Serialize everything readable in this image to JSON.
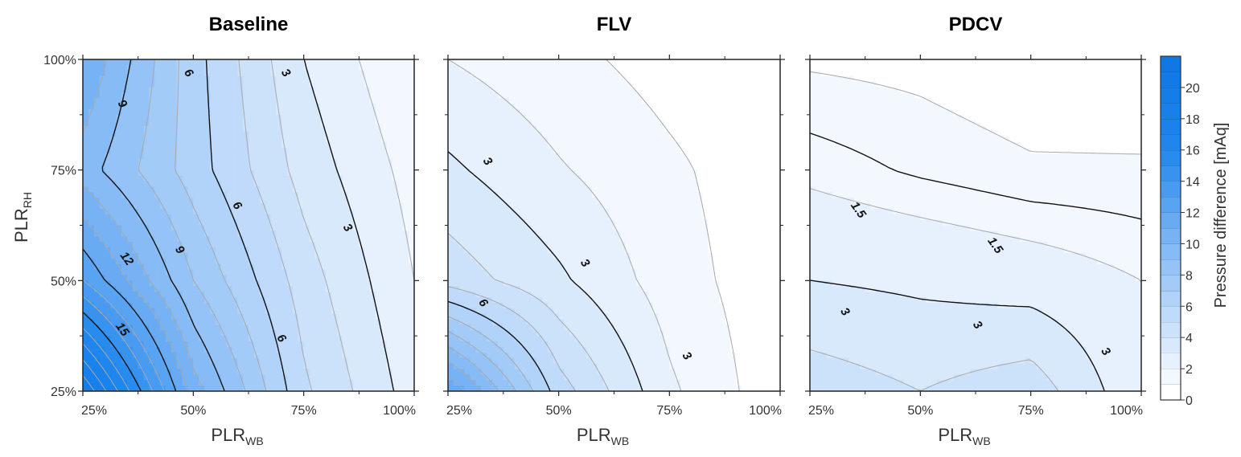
{
  "colors": {
    "levels": [
      "#ffffff",
      "#f3f8fe",
      "#e6f1fd",
      "#d9e9fc",
      "#cce2fb",
      "#bfdafa",
      "#b1d2f9",
      "#a3cbf8",
      "#95c3f7",
      "#86bbf5",
      "#77b3f4",
      "#68abf3",
      "#58a3f2",
      "#489bf1",
      "#3893ef",
      "#288bee",
      "#1e86ed",
      "#1a82ec",
      "#1780ea",
      "#147de8",
      "#127ae6",
      "#1078e4"
    ],
    "major_line": "#111111",
    "minor_line": "#a8a8a8"
  },
  "chart_data": [
    {
      "type": "heatmap",
      "title": "Baseline",
      "x": [
        25,
        50,
        75,
        100
      ],
      "y": [
        25,
        50,
        75,
        100
      ],
      "xlim": [
        25,
        100
      ],
      "ylim": [
        25,
        100
      ],
      "xticks": [
        "25%",
        "50%",
        "75%",
        "100%"
      ],
      "yticks": [
        "25%",
        "50%",
        "75%",
        "100%"
      ],
      "xlabel": "PLR",
      "xlabel_sub": "WB",
      "ylabel": "PLR",
      "ylabel_sub": "RH",
      "z": [
        [
          20,
          10.5,
          5.2,
          2.5
        ],
        [
          13,
          8,
          4.5,
          2
        ],
        [
          9.5,
          6.5,
          3.6,
          1.6
        ],
        [
          11,
          6.4,
          3,
          1
        ]
      ],
      "major_levels": [
        3,
        6,
        9,
        12,
        15
      ],
      "contour_labels": [
        {
          "text": "9",
          "x": 34,
          "y": 90
        },
        {
          "text": "6",
          "x": 49,
          "y": 97
        },
        {
          "text": "3",
          "x": 71,
          "y": 97
        },
        {
          "text": "6",
          "x": 60,
          "y": 67
        },
        {
          "text": "3",
          "x": 85,
          "y": 62
        },
        {
          "text": "12",
          "x": 35,
          "y": 55
        },
        {
          "text": "9",
          "x": 47,
          "y": 57
        },
        {
          "text": "15",
          "x": 34,
          "y": 39
        },
        {
          "text": "6",
          "x": 70,
          "y": 37
        }
      ]
    },
    {
      "type": "heatmap",
      "title": "FLV",
      "x": [
        25,
        50,
        75,
        100
      ],
      "y": [
        25,
        50,
        75,
        100
      ],
      "xlim": [
        25,
        100
      ],
      "ylim": [
        25,
        100
      ],
      "xticks": [
        "25%",
        "50%",
        "75%",
        "100%"
      ],
      "yticks": [],
      "xlabel": "PLR",
      "xlabel_sub": "WB",
      "ylabel": "",
      "ylabel_sub": "",
      "z": [
        [
          12,
          5.5,
          2.2,
          0.3
        ],
        [
          4.6,
          3.2,
          1.5,
          0.3
        ],
        [
          3.2,
          2.1,
          1.2,
          0.3
        ],
        [
          2,
          1.3,
          0.6,
          0.2
        ]
      ],
      "major_levels": [
        3,
        6
      ],
      "contour_labels": [
        {
          "text": "3",
          "x": 34,
          "y": 77
        },
        {
          "text": "3",
          "x": 56,
          "y": 54
        },
        {
          "text": "6",
          "x": 33,
          "y": 45
        },
        {
          "text": "3",
          "x": 79,
          "y": 33
        }
      ]
    },
    {
      "type": "heatmap",
      "title": "PDCV",
      "x": [
        25,
        50,
        75,
        100
      ],
      "y": [
        25,
        50,
        75,
        100
      ],
      "xlim": [
        25,
        100
      ],
      "ylim": [
        25,
        100
      ],
      "xticks": [
        "25%",
        "50%",
        "75%",
        "100%"
      ],
      "yticks": [],
      "xlabel": "PLR",
      "xlabel_sub": "WB",
      "ylabel": "",
      "ylabel_sub": "",
      "z": [
        [
          4.6,
          4,
          4.6,
          2.2
        ],
        [
          3,
          2.8,
          2.5,
          2
        ],
        [
          1.8,
          1.4,
          1.1,
          1.1
        ],
        [
          0.9,
          0.8,
          0.5,
          0.4
        ]
      ],
      "major_levels": [
        1.5,
        3
      ],
      "contour_labels": [
        {
          "text": "1.5",
          "x": 36,
          "y": 66
        },
        {
          "text": "1.5",
          "x": 67,
          "y": 58
        },
        {
          "text": "3",
          "x": 33,
          "y": 43
        },
        {
          "text": "3",
          "x": 63,
          "y": 40
        },
        {
          "text": "3",
          "x": 92,
          "y": 34
        }
      ]
    }
  ],
  "colorbar": {
    "title": "Pressure difference [mAq]",
    "min": 0,
    "max": 22,
    "ticks": [
      "0",
      "2",
      "4",
      "6",
      "8",
      "10",
      "12",
      "14",
      "16",
      "18",
      "20"
    ]
  }
}
